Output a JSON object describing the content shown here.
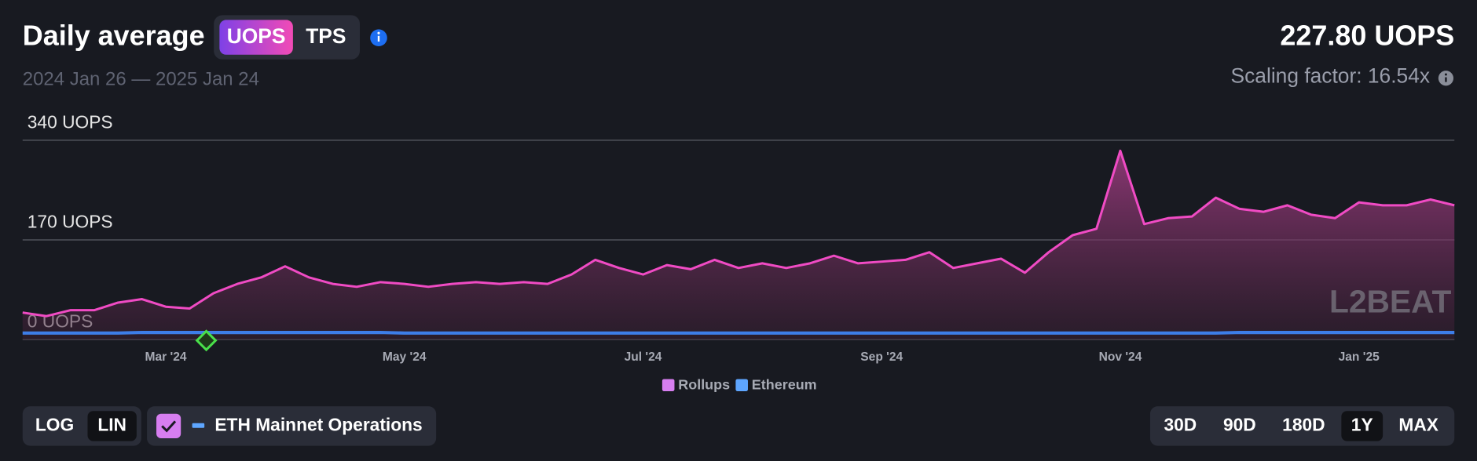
{
  "chart_data": {
    "type": "area",
    "title": "Daily average",
    "subtitle": "2024 Jan 26 — 2025 Jan 24",
    "headline": "227.80 UOPS",
    "scaling_factor": "Scaling factor: 16.54x",
    "watermark": "L2BEAT",
    "categories": [
      null,
      null,
      null,
      null,
      null,
      null,
      "Mar '24",
      null,
      null,
      null,
      null,
      null,
      null,
      null,
      null,
      null,
      "May '24",
      null,
      null,
      null,
      null,
      null,
      null,
      null,
      null,
      null,
      "Jul '24",
      null,
      null,
      null,
      null,
      null,
      null,
      null,
      null,
      null,
      "Sep '24",
      null,
      null,
      null,
      null,
      null,
      null,
      null,
      null,
      null,
      "Nov '24",
      null,
      null,
      null,
      null,
      null,
      null,
      null,
      null,
      null,
      "Jan '25",
      null,
      null,
      null,
      null
    ],
    "series": [
      {
        "name": "Rollups",
        "color": "#f04bc4",
        "legend_color": "#d77ef0",
        "values": [
          46,
          40,
          50,
          50,
          63,
          69,
          56,
          53,
          79,
          95,
          106,
          125,
          106,
          95,
          90,
          98,
          95,
          90,
          95,
          98,
          95,
          98,
          95,
          111,
          136,
          122,
          111,
          127,
          120,
          136,
          122,
          130,
          122,
          130,
          143,
          130,
          133,
          136,
          149,
          122,
          130,
          138,
          114,
          149,
          178,
          189,
          322,
          197,
          207,
          210,
          242,
          223,
          218,
          229,
          213,
          207,
          234,
          229,
          229,
          239,
          229
        ]
      },
      {
        "name": "Ethereum",
        "color": "#3d7ee8",
        "legend_color": "#5ea6ff",
        "values": [
          11,
          11,
          11,
          11,
          11,
          12,
          12,
          12,
          12,
          12,
          12,
          12,
          12,
          12,
          12,
          12,
          11,
          11,
          11,
          11,
          11,
          11,
          11,
          11,
          11,
          11,
          11,
          11,
          11,
          11,
          11,
          11,
          11,
          11,
          11,
          11,
          11,
          11,
          11,
          11,
          11,
          11,
          11,
          11,
          11,
          11,
          11,
          11,
          11,
          11,
          11,
          12,
          12,
          12,
          12,
          12,
          12,
          12,
          12,
          12,
          12
        ]
      }
    ],
    "ylim": [
      0,
      340
    ],
    "yticks": [
      {
        "value": 0,
        "label": "0 UOPS"
      },
      {
        "value": 170,
        "label": "170 UOPS"
      },
      {
        "value": 340,
        "label": "340 UOPS"
      }
    ],
    "grid": true
  },
  "metric_toggle": [
    "UOPS",
    "TPS"
  ],
  "scale_toggle": [
    "LOG",
    "LIN"
  ],
  "eth_toggle": "ETH Mainnet Operations",
  "ranges": [
    "30D",
    "90D",
    "180D",
    "1Y",
    "MAX"
  ]
}
